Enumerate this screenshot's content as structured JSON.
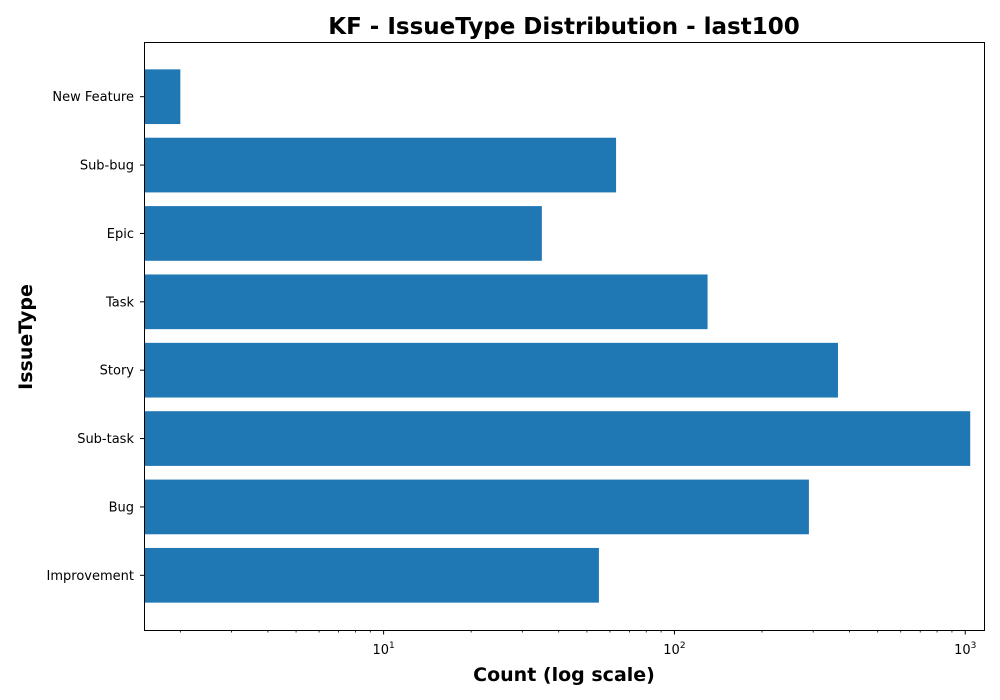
{
  "chart_data": {
    "type": "bar",
    "orientation": "horizontal",
    "title": "KF - IssueType Distribution - last100",
    "xlabel": "Count (log scale)",
    "ylabel": "IssueType",
    "xscale": "log",
    "xlim": [
      1.5,
      1160
    ],
    "categories": [
      "Improvement",
      "Bug",
      "Sub-task",
      "Story",
      "Task",
      "Epic",
      "Sub-bug",
      "New Feature"
    ],
    "values": [
      55,
      290,
      1040,
      365,
      130,
      35,
      63,
      2
    ],
    "x_ticks": [
      {
        "value": 10,
        "base": "10",
        "exp": "1"
      },
      {
        "value": 100,
        "base": "10",
        "exp": "2"
      },
      {
        "value": 1000,
        "base": "10",
        "exp": "3"
      }
    ],
    "bar_color": "#1f77b4",
    "grid": false,
    "legend": "none"
  }
}
